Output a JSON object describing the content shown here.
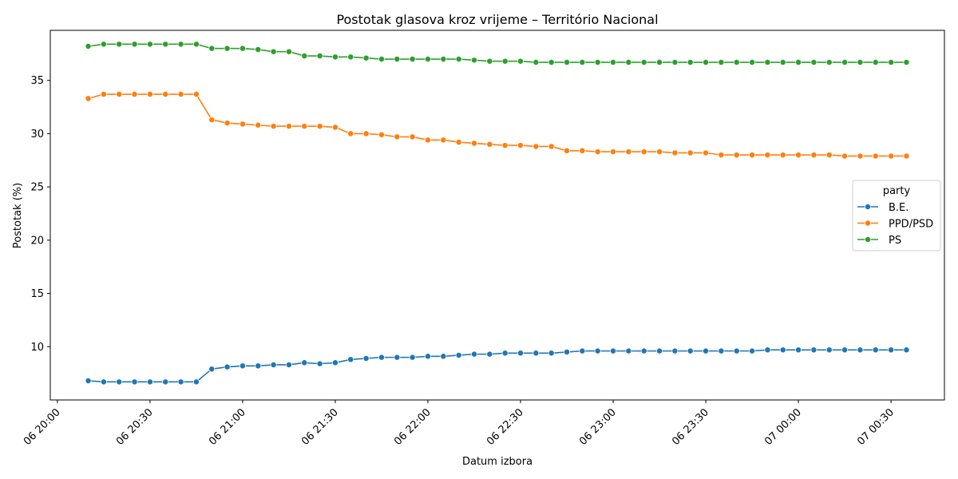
{
  "chart_data": {
    "type": "line",
    "title": "Postotak glasova kroz vrijeme – Território Nacional",
    "xlabel": "Datum izbora",
    "ylabel": "Postotak (%)",
    "x_range": [
      "06 20:00",
      "07 00:30"
    ],
    "ylim": [
      5.0,
      39.7
    ],
    "grid": false,
    "legend": {
      "title": "party",
      "placement": "center-right"
    },
    "x_ticks": [
      "06 20:00",
      "06 20:30",
      "06 21:00",
      "06 21:30",
      "06 22:00",
      "06 22:30",
      "06 23:00",
      "06 23:30",
      "07 00:00",
      "07 00:30"
    ],
    "y_ticks": [
      10,
      15,
      20,
      25,
      30,
      35
    ],
    "x": [
      "06 20:10",
      "06 20:15",
      "06 20:20",
      "06 20:25",
      "06 20:30",
      "06 20:35",
      "06 20:40",
      "06 20:45",
      "06 20:50",
      "06 20:55",
      "06 21:00",
      "06 21:05",
      "06 21:10",
      "06 21:15",
      "06 21:20",
      "06 21:25",
      "06 21:30",
      "06 21:35",
      "06 21:40",
      "06 21:45",
      "06 21:50",
      "06 21:55",
      "06 22:00",
      "06 22:05",
      "06 22:10",
      "06 22:15",
      "06 22:20",
      "06 22:25",
      "06 22:30",
      "06 22:35",
      "06 22:40",
      "06 22:45",
      "06 22:50",
      "06 22:55",
      "06 23:00",
      "06 23:05",
      "06 23:10",
      "06 23:15",
      "06 23:20",
      "06 23:25",
      "06 23:30",
      "06 23:35",
      "06 23:40",
      "06 23:45",
      "06 23:50",
      "06 23:55",
      "07 00:00",
      "07 00:05",
      "07 00:10",
      "07 00:15",
      "07 00:20",
      "07 00:25",
      "07 00:30",
      "07 00:35"
    ],
    "series": [
      {
        "name": "B.E.",
        "color": "#1f77b4",
        "values": [
          6.8,
          6.7,
          6.7,
          6.7,
          6.7,
          6.7,
          6.7,
          6.7,
          7.9,
          8.1,
          8.2,
          8.2,
          8.3,
          8.3,
          8.5,
          8.4,
          8.5,
          8.8,
          8.9,
          9.0,
          9.0,
          9.0,
          9.1,
          9.1,
          9.2,
          9.3,
          9.3,
          9.4,
          9.4,
          9.4,
          9.4,
          9.5,
          9.6,
          9.6,
          9.6,
          9.6,
          9.6,
          9.6,
          9.6,
          9.6,
          9.6,
          9.6,
          9.6,
          9.6,
          9.7,
          9.7,
          9.7,
          9.7,
          9.7,
          9.7,
          9.7,
          9.7,
          9.7,
          9.7
        ]
      },
      {
        "name": "PPD/PSD",
        "color": "#ff7f0e",
        "values": [
          33.3,
          33.7,
          33.7,
          33.7,
          33.7,
          33.7,
          33.7,
          33.7,
          31.3,
          31.0,
          30.9,
          30.8,
          30.7,
          30.7,
          30.7,
          30.7,
          30.6,
          30.0,
          30.0,
          29.9,
          29.7,
          29.7,
          29.4,
          29.4,
          29.2,
          29.1,
          29.0,
          28.9,
          28.9,
          28.8,
          28.8,
          28.4,
          28.4,
          28.3,
          28.3,
          28.3,
          28.3,
          28.3,
          28.2,
          28.2,
          28.2,
          28.0,
          28.0,
          28.0,
          28.0,
          28.0,
          28.0,
          28.0,
          28.0,
          27.9,
          27.9,
          27.9,
          27.9,
          27.9
        ]
      },
      {
        "name": "PS",
        "color": "#2ca02c",
        "values": [
          38.2,
          38.4,
          38.4,
          38.4,
          38.4,
          38.4,
          38.4,
          38.4,
          38.0,
          38.0,
          38.0,
          37.9,
          37.7,
          37.7,
          37.3,
          37.3,
          37.2,
          37.2,
          37.1,
          37.0,
          37.0,
          37.0,
          37.0,
          37.0,
          37.0,
          36.9,
          36.8,
          36.8,
          36.8,
          36.7,
          36.7,
          36.7,
          36.7,
          36.7,
          36.7,
          36.7,
          36.7,
          36.7,
          36.7,
          36.7,
          36.7,
          36.7,
          36.7,
          36.7,
          36.7,
          36.7,
          36.7,
          36.7,
          36.7,
          36.7,
          36.7,
          36.7,
          36.7,
          36.7
        ]
      }
    ]
  }
}
